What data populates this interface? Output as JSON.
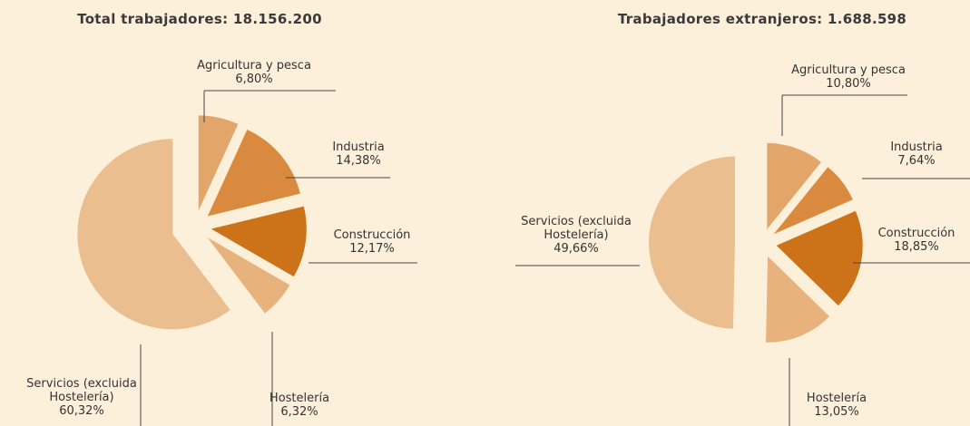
{
  "chart_data": [
    {
      "type": "pie",
      "title": "Total trabajadores: 18.156.200",
      "categories": [
        "Agricultura y pesca",
        "Industria",
        "Construcción",
        "Hostelería",
        "Servicios (excluida Hostelería)"
      ],
      "values": [
        6.8,
        14.38,
        12.17,
        6.32,
        60.32
      ],
      "value_labels": [
        "6,80%",
        "14,38%",
        "12,17%",
        "6,32%",
        "60,32%"
      ],
      "colors": [
        "#e3a66a",
        "#d98a3e",
        "#cc7319",
        "#e8b27d",
        "#ebbe8f"
      ]
    },
    {
      "type": "pie",
      "title": "Trabajadores extranjeros: 1.688.598",
      "categories": [
        "Agricultura y pesca",
        "Industria",
        "Construcción",
        "Hostelería",
        "Servicios (excluida Hostelería)"
      ],
      "values": [
        10.8,
        7.64,
        18.85,
        13.05,
        49.66
      ],
      "value_labels": [
        "10,80%",
        "7,64%",
        "18,85%",
        "13,05%",
        "49,66%"
      ],
      "colors": [
        "#e3a66a",
        "#d98a3e",
        "#cc7319",
        "#e8b27d",
        "#ebbe8f"
      ]
    }
  ]
}
